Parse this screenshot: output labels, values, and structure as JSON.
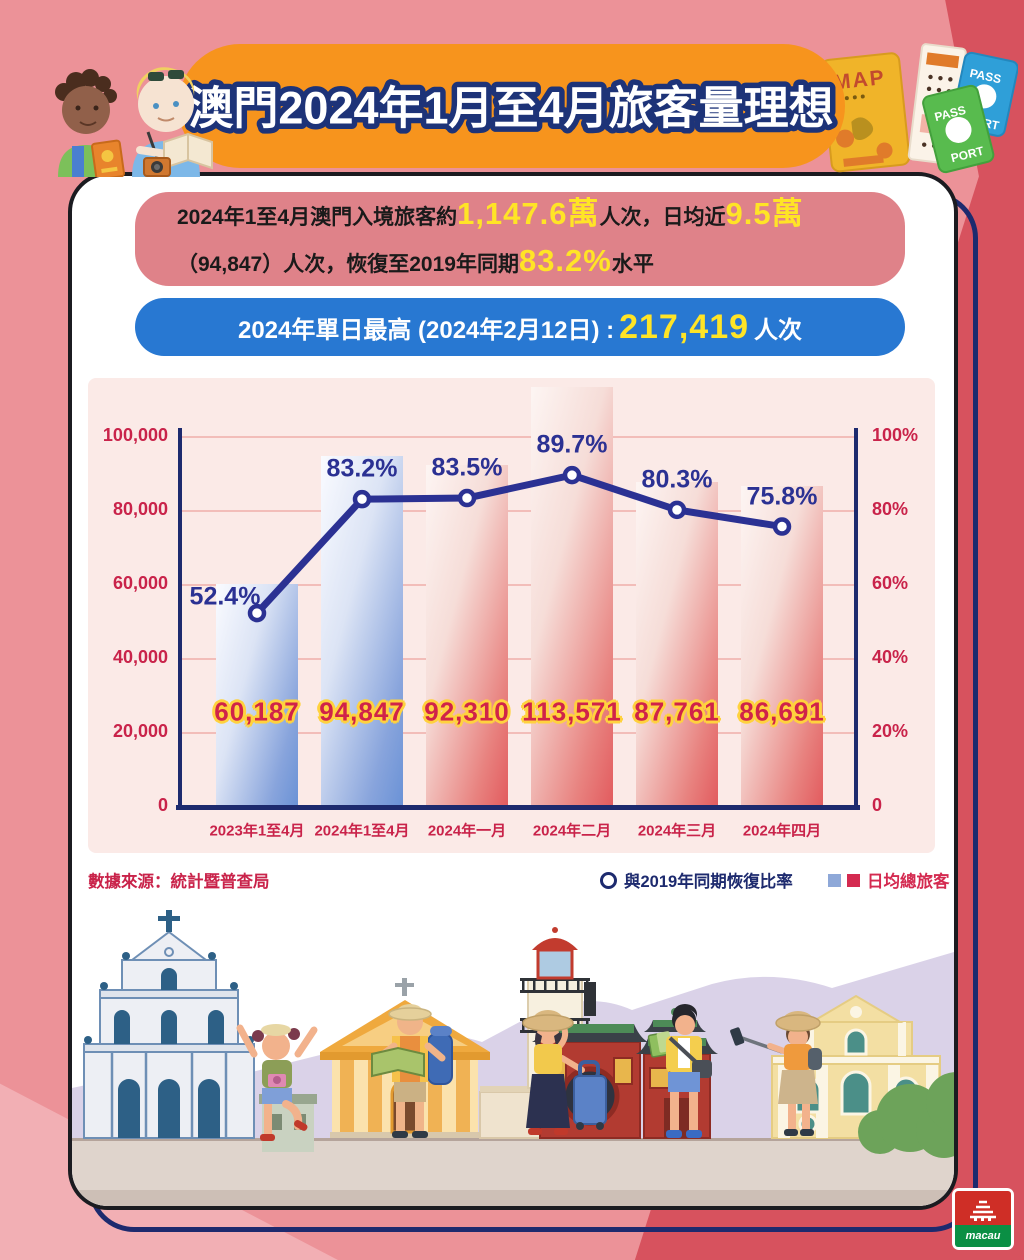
{
  "banner": {
    "title": "澳門2024年1月至4月旅客量理想"
  },
  "summary_box": {
    "l1a": "2024年1至4月澳門入境旅客約",
    "l1b": "1,147.6萬",
    "l1c": "人次，日均近",
    "l1d": "9.5萬",
    "l2a": "（94,847）人次，恢復至2019年同期",
    "l2b": "83.2%",
    "l2c": "水平"
  },
  "peak_box": {
    "a": "2024年單日最高 (2024年2月12日) : ",
    "b": "217,419",
    "c": "人次"
  },
  "chart_data": {
    "type": "bar+line",
    "categories": [
      "2023年1至4月",
      "2024年1至4月",
      "2024年一月",
      "2024年二月",
      "2024年三月",
      "2024年四月"
    ],
    "series": [
      {
        "name": "日均總旅客",
        "type": "bar",
        "axis": "left",
        "values": [
          60187,
          94847,
          92310,
          113571,
          87761,
          86691
        ],
        "labels": [
          "60,187",
          "94,847",
          "92,310",
          "113,571",
          "87,761",
          "86,691"
        ],
        "bar_styles": [
          "blue",
          "blue",
          "red",
          "red",
          "red",
          "red"
        ]
      },
      {
        "name": "與2019年同期恢復比率",
        "type": "line",
        "axis": "right",
        "values": [
          52.4,
          83.2,
          83.5,
          89.7,
          80.3,
          75.8
        ],
        "labels": [
          "52.4%",
          "83.2%",
          "83.5%",
          "89.7%",
          "80.3%",
          "75.8%"
        ]
      }
    ],
    "left_axis": {
      "max": 100000,
      "ticks": [
        "100,000",
        "80,000",
        "60,000",
        "40,000",
        "20,000",
        "0"
      ]
    },
    "right_axis": {
      "max": 100,
      "ticks": [
        "100%",
        "80%",
        "60%",
        "40%",
        "20%",
        "0"
      ]
    },
    "grid": true,
    "legend_position": "bottom-right"
  },
  "legend": {
    "line_label": "與2019年同期恢復比率",
    "bar_label": "日均總旅客"
  },
  "source": "數據來源：統計暨普查局",
  "decor": {
    "map_label": "MAP",
    "pass_top": "PASS",
    "pass_bottom": "PORT",
    "logo_text": "macau"
  },
  "colors": {
    "background": "#EC9298",
    "background_dark": "#D7525E",
    "background_light": "#F2AFB4",
    "banner_orange": "#F7941D",
    "summary_salmon": "#DF8289",
    "peak_blue": "#2878D2",
    "highlight_yellow": "#FFE426",
    "crimson": "#C9234A",
    "navy": "#1D2A6E",
    "line_indigo": "#2B3193",
    "bar_blue": "#6A92D6",
    "bar_red": "#E25B5E",
    "panel_pink": "#FBEAE7"
  }
}
